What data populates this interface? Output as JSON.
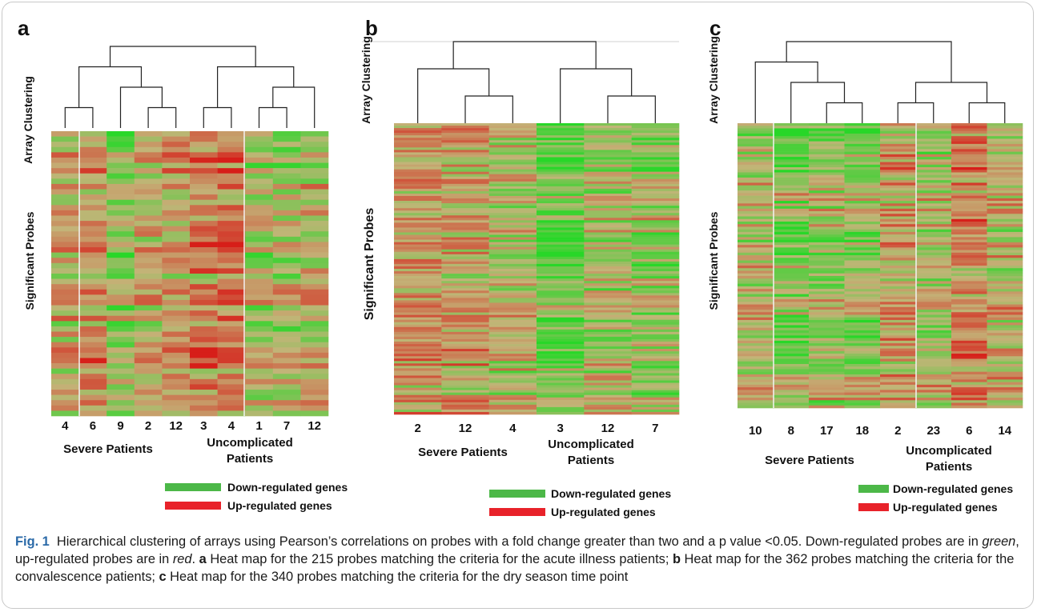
{
  "legend": {
    "down_label": "Down-regulated genes",
    "up_label": "Up-regulated genes",
    "down_color": "#4cb848",
    "up_color": "#e8222a"
  },
  "caption": {
    "fig_label": "Fig. 1",
    "text_1": "Hierarchical clustering of arrays using Pearson’s correlations on probes with a fold change greater than two and a p value <0.05. Down-regulated probes are in ",
    "green_word": "green",
    "text_2": ", up-regulated probes are in ",
    "red_word": "red",
    "text_3": ". ",
    "a_label": "a",
    "a_text": " Heat map for the 215 probes matching the criteria for the acute illness patients; ",
    "b_label": "b",
    "b_text": " Heat map for the 362 probes matching the criteria for the convalescence patients; ",
    "c_label": "c",
    "c_text": " Heat map for the 340 probes matching the criteria for the dry season time point"
  },
  "chart_data": [
    {
      "type": "heatmap",
      "panel_label": "a",
      "xlabel_top": "Array Clustering",
      "ylabel": "Significant Probes",
      "columns": [
        "4",
        "6",
        "9",
        "2",
        "12",
        "3",
        "4",
        "1",
        "7",
        "12"
      ],
      "groups": [
        {
          "name": "Severe Patients",
          "count": 5
        },
        {
          "name": "Uncomplicated Patients",
          "count": 5
        }
      ],
      "probe_count": 215,
      "colors": {
        "down": "#4cb848",
        "up": "#e8222a"
      }
    },
    {
      "type": "heatmap",
      "panel_label": "b",
      "xlabel_top": "Array Clustering",
      "ylabel": "Significant Probes",
      "columns": [
        "2",
        "12",
        "4",
        "3",
        "12",
        "7"
      ],
      "groups": [
        {
          "name": "Severe Patients",
          "count": 3
        },
        {
          "name": "Uncomplicated Patients",
          "count": 3
        }
      ],
      "probe_count": 362,
      "colors": {
        "down": "#4cb848",
        "up": "#e8222a"
      }
    },
    {
      "type": "heatmap",
      "panel_label": "c",
      "xlabel_top": "Array Clustering",
      "ylabel": "Significant Probes",
      "columns": [
        "10",
        "8",
        "17",
        "18",
        "2",
        "23",
        "6",
        "14"
      ],
      "groups": [
        {
          "name": "Severe Patients",
          "count": 4
        },
        {
          "name": "Uncomplicated Patients",
          "count": 4
        }
      ],
      "probe_count": 340,
      "colors": {
        "down": "#4cb848",
        "up": "#e8222a"
      }
    }
  ]
}
